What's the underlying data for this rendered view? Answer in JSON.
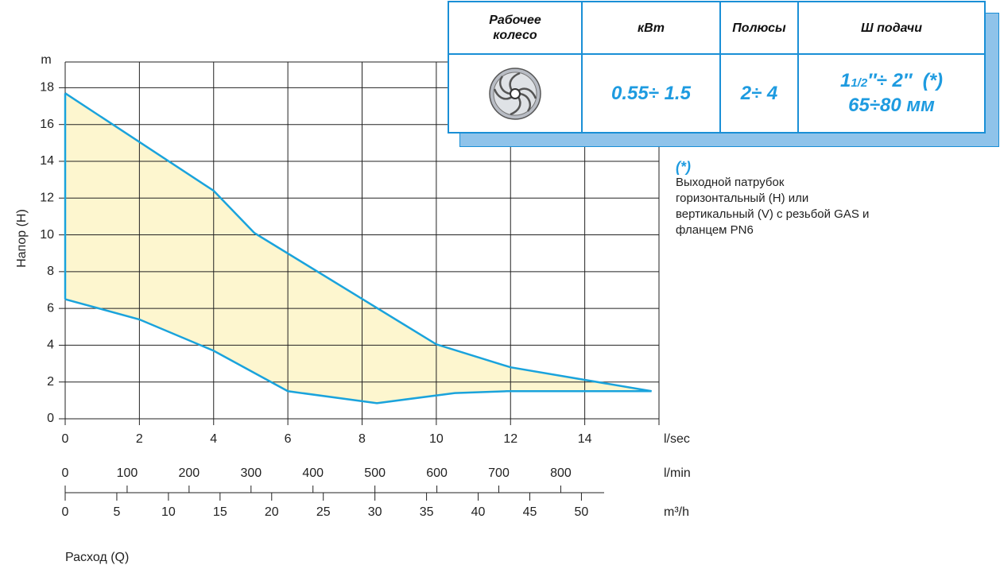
{
  "chart_data": {
    "type": "range-area",
    "y_label": "Напор (H)",
    "y_unit": "m",
    "x_label": "Расход (Q)",
    "x_unit": "l/sec",
    "xlim": [
      0,
      16
    ],
    "xticks": [
      0,
      2,
      4,
      6,
      8,
      10,
      12,
      14
    ],
    "ylim": [
      0,
      19.4
    ],
    "yticks": [
      0,
      2,
      4,
      6,
      8,
      10,
      12,
      14,
      16,
      18
    ],
    "grid": true,
    "fill_color": "#fdf6cf",
    "series": [
      {
        "color": "#1aa3dc",
        "x": [
          0,
          4,
          5.1,
          10,
          12,
          15.8
        ],
        "values": [
          17.7,
          12.4,
          10.1,
          4.05,
          2.8,
          1.5
        ]
      },
      {
        "color": "#1aa3dc",
        "x": [
          0,
          2,
          4,
          6,
          8.4,
          10.5,
          11.9,
          14.7,
          15.8
        ],
        "values": [
          6.5,
          5.4,
          3.7,
          1.5,
          0.85,
          1.4,
          1.5,
          1.5,
          1.5
        ]
      }
    ],
    "secondary_axes": [
      {
        "unit": "l/min",
        "xlim": [
          0,
          870
        ],
        "xticks": [
          0,
          100,
          200,
          300,
          400,
          500,
          600,
          700,
          800
        ]
      },
      {
        "unit": "m³/h",
        "xlim": [
          0,
          52.2
        ],
        "xticks": [
          0,
          5,
          10,
          15,
          20,
          25,
          30,
          35,
          40,
          45,
          50
        ]
      }
    ]
  },
  "table": {
    "headers": [
      "Рабочее колесо",
      "кВт",
      "Полюсы",
      "Ш подачи"
    ],
    "kw": "0.55÷ 1.5",
    "poles": "2÷ 4",
    "outlet": {
      "whole": "1",
      "fraction": "1/2",
      "rest": "″÷ 2″  (*)",
      "mm": "65÷80 мм"
    }
  },
  "note": {
    "mark": "(*)",
    "lines": [
      "Выходной патрубок",
      "горизонтальный (H) или",
      "вертикальный (V) с резьбой GAS и",
      "фланцем PN6"
    ]
  }
}
